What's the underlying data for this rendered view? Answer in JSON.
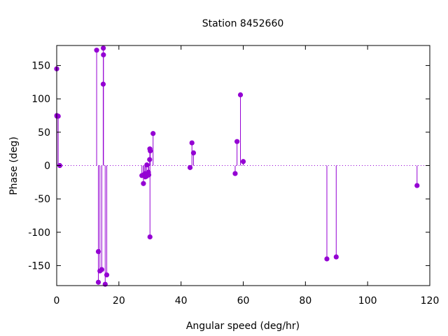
{
  "chart_data": {
    "type": "scatter",
    "style": "impulses-with-points",
    "title": "Station 8452660",
    "xlabel": "Angular speed (deg/hr)",
    "ylabel": "Phase (deg)",
    "xlim": [
      0,
      120
    ],
    "ylim": [
      -180,
      180
    ],
    "xticks": [
      0,
      20,
      40,
      60,
      80,
      100,
      120
    ],
    "yticks": [
      -150,
      -100,
      -50,
      0,
      50,
      100,
      150
    ],
    "grid": false,
    "legend": "none",
    "color": "#9400d3",
    "points": [
      {
        "x": 0.0,
        "y": 145
      },
      {
        "x": 0.04,
        "y": 75
      },
      {
        "x": 0.08,
        "y": 74
      },
      {
        "x": 0.5,
        "y": 74
      },
      {
        "x": 1.0,
        "y": 0
      },
      {
        "x": 12.85,
        "y": 173
      },
      {
        "x": 13.4,
        "y": -129
      },
      {
        "x": 13.4,
        "y": -175
      },
      {
        "x": 13.9,
        "y": -158
      },
      {
        "x": 14.5,
        "y": -156
      },
      {
        "x": 14.96,
        "y": 122
      },
      {
        "x": 15.0,
        "y": 176
      },
      {
        "x": 15.04,
        "y": 166
      },
      {
        "x": 15.6,
        "y": -178
      },
      {
        "x": 16.1,
        "y": -164
      },
      {
        "x": 27.4,
        "y": -15
      },
      {
        "x": 27.9,
        "y": -27
      },
      {
        "x": 28.0,
        "y": -14
      },
      {
        "x": 28.4,
        "y": -12
      },
      {
        "x": 28.5,
        "y": -17
      },
      {
        "x": 28.9,
        "y": -16
      },
      {
        "x": 29.0,
        "y": 1
      },
      {
        "x": 29.5,
        "y": -10
      },
      {
        "x": 29.6,
        "y": -14
      },
      {
        "x": 29.9,
        "y": 9
      },
      {
        "x": 29.96,
        "y": 25
      },
      {
        "x": 30.0,
        "y": -107
      },
      {
        "x": 30.1,
        "y": 22
      },
      {
        "x": 31.0,
        "y": 48
      },
      {
        "x": 42.9,
        "y": -3
      },
      {
        "x": 43.5,
        "y": 34
      },
      {
        "x": 44.0,
        "y": 19
      },
      {
        "x": 57.4,
        "y": -12
      },
      {
        "x": 58.0,
        "y": 36
      },
      {
        "x": 59.1,
        "y": 106
      },
      {
        "x": 60.0,
        "y": 6
      },
      {
        "x": 86.9,
        "y": -140
      },
      {
        "x": 89.9,
        "y": -137
      },
      {
        "x": 115.9,
        "y": -30
      }
    ]
  }
}
